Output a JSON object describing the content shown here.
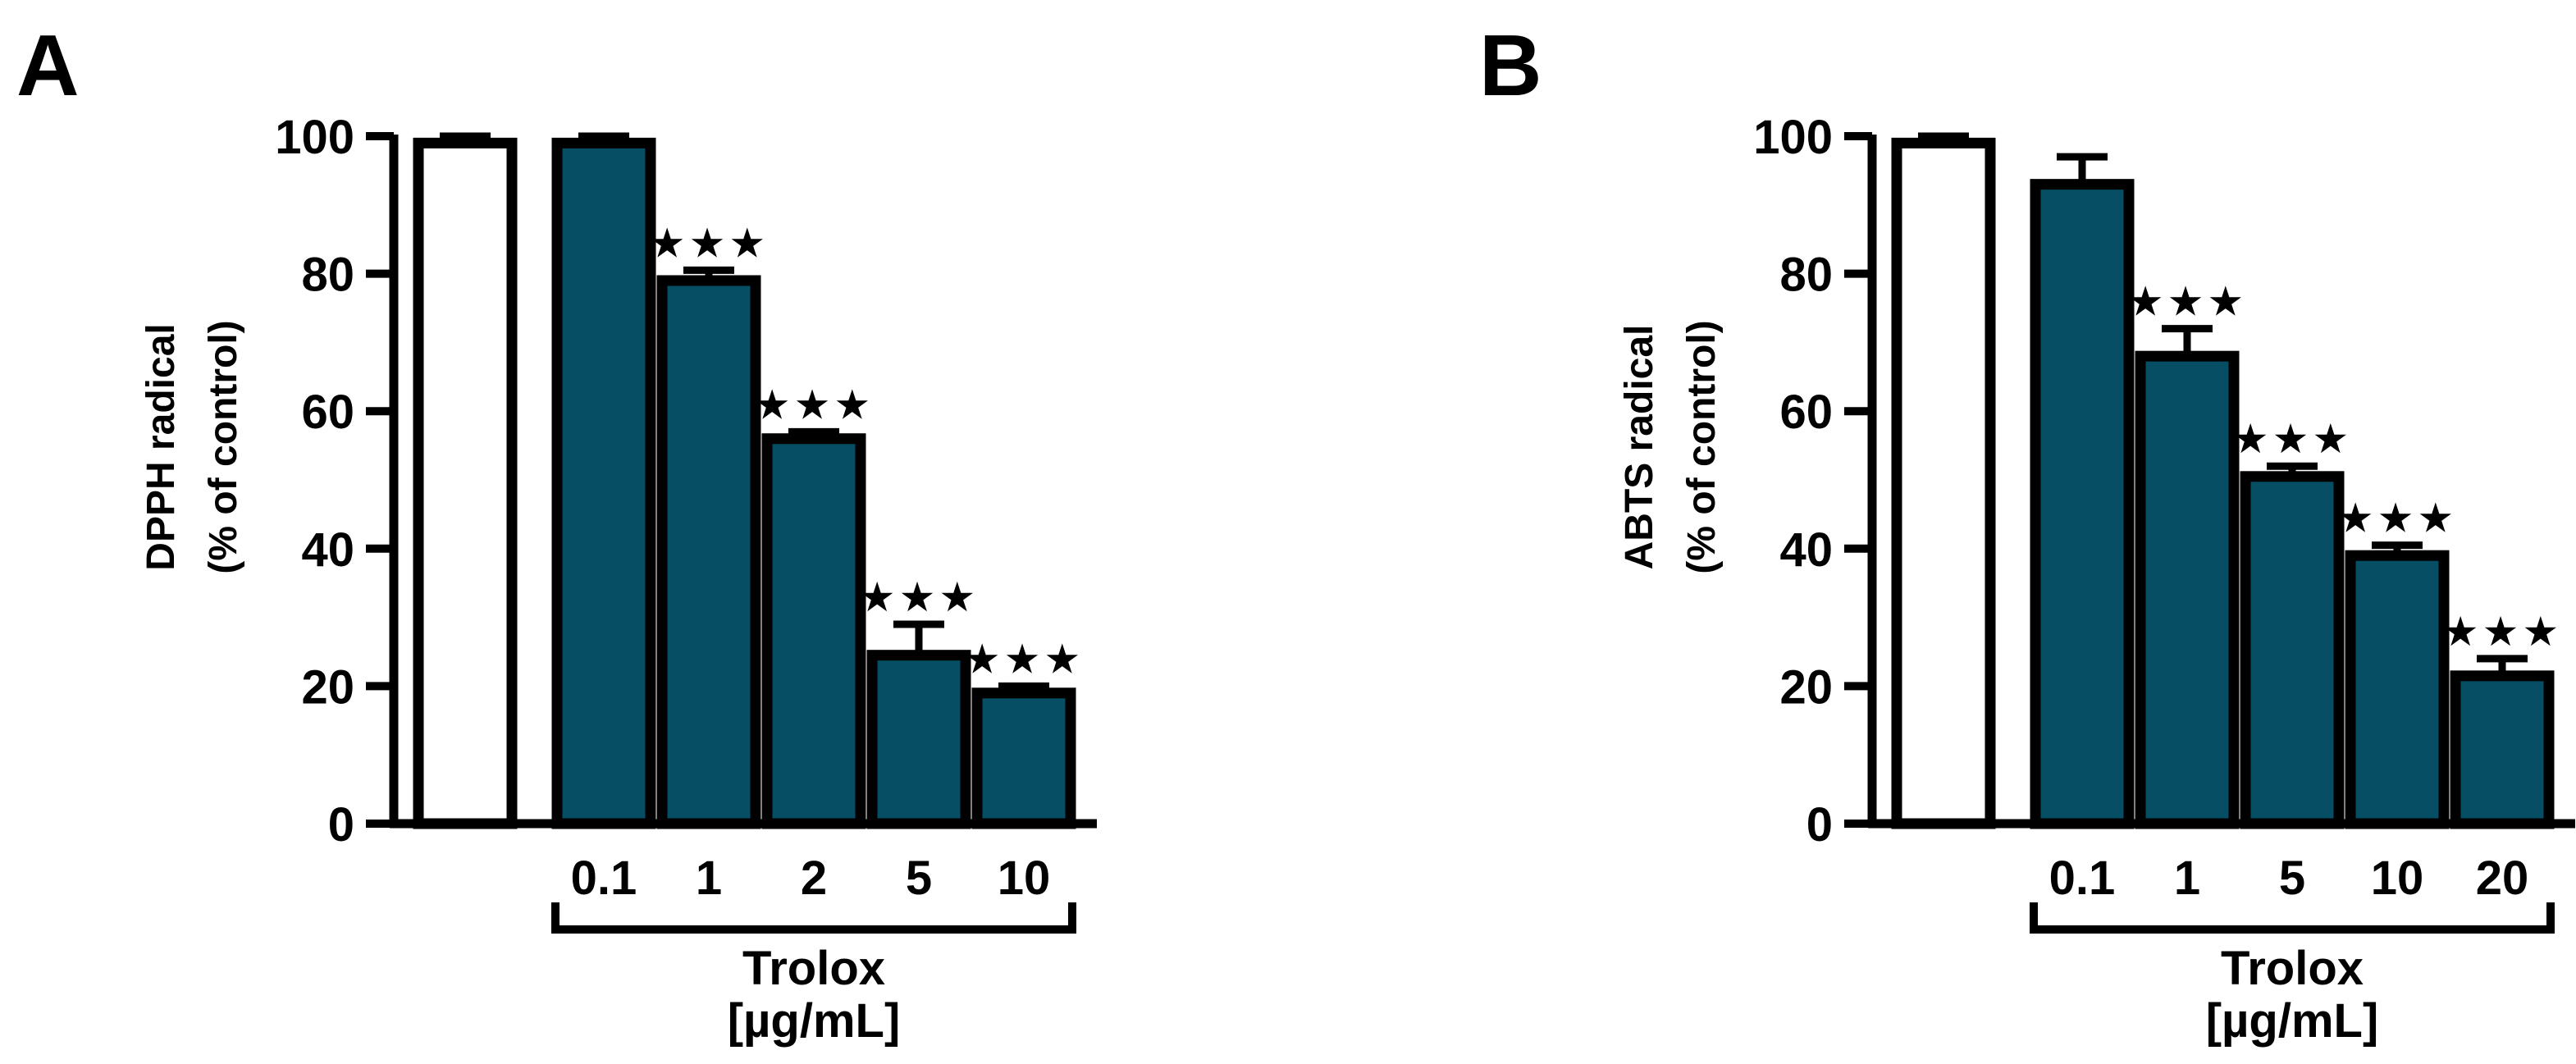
{
  "figure": {
    "background": "#ffffff",
    "colors": {
      "bar_fill": "#064e63",
      "control_fill": "#ffffff",
      "ink": "#000000"
    }
  },
  "chart_data": [
    {
      "type": "bar",
      "panel_label": "A",
      "ylabel": "DPPH radical (% of control)",
      "ylabel_lines": [
        "DPPH radical",
        "(% of control)"
      ],
      "ylim": [
        0,
        100
      ],
      "yticks": [
        0,
        20,
        40,
        60,
        80,
        100
      ],
      "grid": false,
      "legend": "none",
      "categories": [
        "control",
        "0.1",
        "1",
        "2",
        "5",
        "10"
      ],
      "x_tick_labels": [
        "",
        "0.1",
        "1",
        "2",
        "5",
        "10"
      ],
      "values": [
        99,
        99,
        79,
        56,
        24.5,
        19
      ],
      "errors": [
        1,
        1,
        1.5,
        1,
        4.5,
        1
      ],
      "significance": [
        "",
        "",
        "★★★",
        "★★★",
        "★★★",
        "★★★"
      ],
      "bar_styles": [
        "control",
        "treated",
        "treated",
        "treated",
        "treated",
        "treated"
      ],
      "group_label_lines": [
        "Trolox",
        "[µg/mL]"
      ]
    },
    {
      "type": "bar",
      "panel_label": "B",
      "ylabel": "ABTS radical (% of control)",
      "ylabel_lines": [
        "ABTS radical",
        "(% of control)"
      ],
      "ylim": [
        0,
        100
      ],
      "yticks": [
        0,
        20,
        40,
        60,
        80,
        100
      ],
      "grid": false,
      "legend": "none",
      "categories": [
        "control",
        "0.1",
        "1",
        "5",
        "10",
        "20"
      ],
      "x_tick_labels": [
        "",
        "0.1",
        "1",
        "5",
        "10",
        "20"
      ],
      "values": [
        99,
        93,
        68,
        50.5,
        39,
        21.5
      ],
      "errors": [
        1,
        4,
        4,
        1.5,
        1.5,
        2.5
      ],
      "significance": [
        "",
        "",
        "★★★",
        "★★★",
        "★★★",
        "★★★"
      ],
      "bar_styles": [
        "control",
        "treated",
        "treated",
        "treated",
        "treated",
        "treated"
      ],
      "group_label_lines": [
        "Trolox",
        "[µg/mL]"
      ]
    }
  ]
}
